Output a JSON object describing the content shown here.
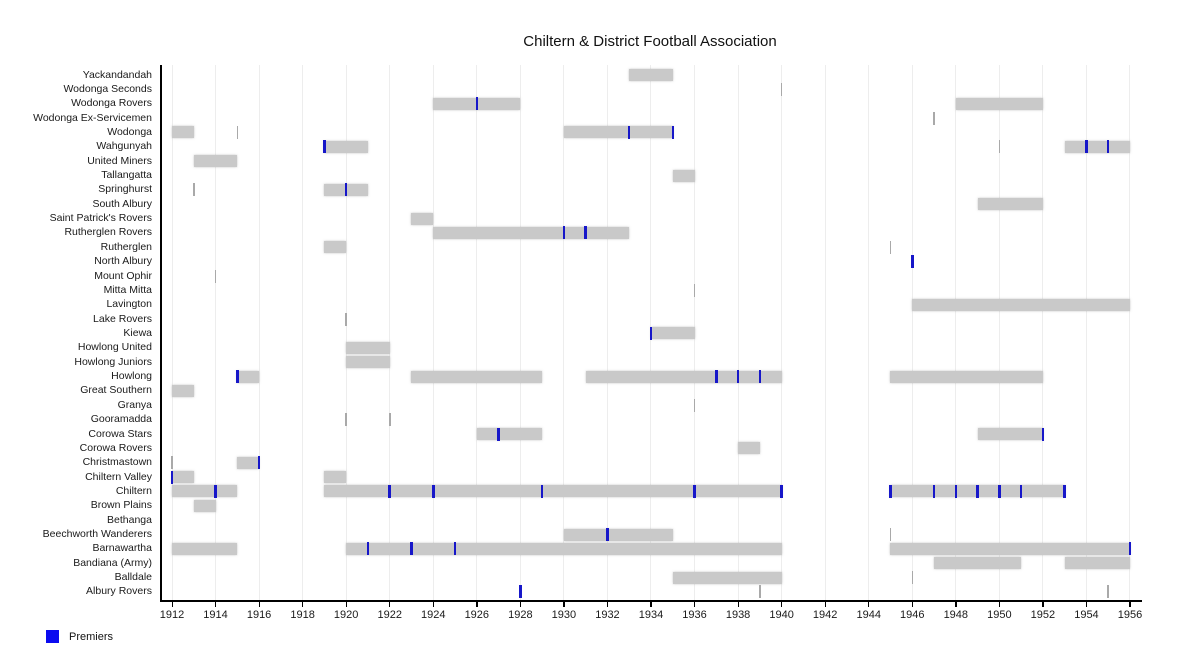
{
  "title": "Chiltern & District Football Association",
  "legend": {
    "label": "Premiers"
  },
  "colors": {
    "bar": "#c9c9c9",
    "premier": "#1717c9",
    "legend_swatch": "#0b0bf0",
    "single_year_mark": "#a9a9a9",
    "grid": "#ededed",
    "axis": "#000000"
  },
  "x_axis": {
    "tick_labels": [
      "1912",
      "1914",
      "1916",
      "1918",
      "1920",
      "1922",
      "1924",
      "1926",
      "1928",
      "1930",
      "1932",
      "1934",
      "1936",
      "1938",
      "1940",
      "1942",
      "1944",
      "1946",
      "1948",
      "1950",
      "1952",
      "1954",
      "1956"
    ]
  },
  "chart_data": {
    "type": "gantt-timeline",
    "title": "Chiltern & District Football Association",
    "xlabel": "",
    "ylabel": "",
    "x_range": [
      1912,
      1956
    ],
    "grid": true,
    "legend_position": "bottom-left",
    "legend_entries": [
      "Premiers"
    ],
    "bar_meaning": "years of membership",
    "premier_meaning": "blue tick = premiership year",
    "mark_meaning": "thin grey tick = single-year entry",
    "teams": [
      {
        "name": "Yackandandah",
        "bars": [
          [
            1933,
            1935
          ]
        ],
        "premiers": [],
        "marks": []
      },
      {
        "name": "Wodonga Seconds",
        "bars": [],
        "premiers": [],
        "marks": [
          1940
        ]
      },
      {
        "name": "Wodonga Rovers",
        "bars": [
          [
            1924,
            1928
          ],
          [
            1948,
            1952
          ]
        ],
        "premiers": [
          1926
        ],
        "marks": []
      },
      {
        "name": "Wodonga Ex-Servicemen",
        "bars": [],
        "premiers": [],
        "marks": [
          1947
        ]
      },
      {
        "name": "Wodonga",
        "bars": [
          [
            1912,
            1913
          ],
          [
            1930,
            1935
          ]
        ],
        "premiers": [
          1933,
          1935
        ],
        "marks": [
          1915
        ]
      },
      {
        "name": "Wahgunyah",
        "bars": [
          [
            1919,
            1921
          ],
          [
            1953,
            1956
          ]
        ],
        "premiers": [
          1919,
          1954,
          1955
        ],
        "marks": [
          1950
        ]
      },
      {
        "name": "United Miners",
        "bars": [
          [
            1913,
            1915
          ]
        ],
        "premiers": [],
        "marks": []
      },
      {
        "name": "Tallangatta",
        "bars": [
          [
            1935,
            1936
          ]
        ],
        "premiers": [],
        "marks": []
      },
      {
        "name": "Springhurst",
        "bars": [
          [
            1919,
            1921
          ]
        ],
        "premiers": [
          1920
        ],
        "marks": [
          1913
        ]
      },
      {
        "name": "South Albury",
        "bars": [
          [
            1949,
            1952
          ]
        ],
        "premiers": [],
        "marks": []
      },
      {
        "name": "Saint Patrick's Rovers",
        "bars": [
          [
            1923,
            1924
          ]
        ],
        "premiers": [],
        "marks": []
      },
      {
        "name": "Rutherglen Rovers",
        "bars": [
          [
            1924,
            1933
          ]
        ],
        "premiers": [
          1930,
          1931
        ],
        "marks": []
      },
      {
        "name": "Rutherglen",
        "bars": [
          [
            1919,
            1920
          ]
        ],
        "premiers": [],
        "marks": [
          1945
        ]
      },
      {
        "name": "North Albury",
        "bars": [],
        "premiers": [
          1946
        ],
        "marks": []
      },
      {
        "name": "Mount Ophir",
        "bars": [],
        "premiers": [],
        "marks": [
          1914
        ]
      },
      {
        "name": "Mitta Mitta",
        "bars": [],
        "premiers": [],
        "marks": [
          1936
        ]
      },
      {
        "name": "Lavington",
        "bars": [
          [
            1946,
            1956
          ]
        ],
        "premiers": [],
        "marks": []
      },
      {
        "name": "Lake Rovers",
        "bars": [],
        "premiers": [],
        "marks": [
          1920
        ]
      },
      {
        "name": "Kiewa",
        "bars": [
          [
            1934,
            1936
          ]
        ],
        "premiers": [
          1934
        ],
        "marks": []
      },
      {
        "name": "Howlong United",
        "bars": [
          [
            1920,
            1922
          ]
        ],
        "premiers": [],
        "marks": []
      },
      {
        "name": "Howlong Juniors",
        "bars": [
          [
            1920,
            1922
          ]
        ],
        "premiers": [],
        "marks": []
      },
      {
        "name": "Howlong",
        "bars": [
          [
            1915,
            1916
          ],
          [
            1923,
            1929
          ],
          [
            1931,
            1940
          ],
          [
            1945,
            1952
          ]
        ],
        "premiers": [
          1915,
          1937,
          1938,
          1939
        ],
        "marks": []
      },
      {
        "name": "Great Southern",
        "bars": [
          [
            1912,
            1913
          ]
        ],
        "premiers": [],
        "marks": []
      },
      {
        "name": "Granya",
        "bars": [],
        "premiers": [],
        "marks": [
          1936
        ]
      },
      {
        "name": "Gooramadda",
        "bars": [],
        "premiers": [],
        "marks": [
          1920,
          1922
        ]
      },
      {
        "name": "Corowa Stars",
        "bars": [
          [
            1926,
            1929
          ],
          [
            1949,
            1952
          ]
        ],
        "premiers": [
          1927,
          1952
        ],
        "marks": []
      },
      {
        "name": "Corowa Rovers",
        "bars": [
          [
            1938,
            1939
          ]
        ],
        "premiers": [],
        "marks": []
      },
      {
        "name": "Christmastown",
        "bars": [
          [
            1915,
            1916
          ]
        ],
        "premiers": [
          1916
        ],
        "marks": [
          1912
        ]
      },
      {
        "name": "Chiltern Valley",
        "bars": [
          [
            1912,
            1913
          ],
          [
            1919,
            1920
          ]
        ],
        "premiers": [
          1912
        ],
        "marks": []
      },
      {
        "name": "Chiltern",
        "bars": [
          [
            1912,
            1915
          ],
          [
            1919,
            1940
          ],
          [
            1945,
            1953
          ]
        ],
        "premiers": [
          1914,
          1922,
          1924,
          1929,
          1936,
          1940,
          1945,
          1947,
          1948,
          1949,
          1950,
          1951,
          1953
        ],
        "marks": []
      },
      {
        "name": "Brown Plains",
        "bars": [
          [
            1913,
            1914
          ]
        ],
        "premiers": [],
        "marks": []
      },
      {
        "name": "Bethanga",
        "bars": [],
        "premiers": [],
        "marks": []
      },
      {
        "name": "Beechworth Wanderers",
        "bars": [
          [
            1930,
            1935
          ]
        ],
        "premiers": [
          1932
        ],
        "marks": [
          1945
        ]
      },
      {
        "name": "Barnawartha",
        "bars": [
          [
            1912,
            1915
          ],
          [
            1920,
            1940
          ],
          [
            1945,
            1956
          ]
        ],
        "premiers": [
          1921,
          1923,
          1925,
          1956
        ],
        "marks": []
      },
      {
        "name": "Bandiana (Army)",
        "bars": [
          [
            1947,
            1951
          ],
          [
            1953,
            1956
          ]
        ],
        "premiers": [],
        "marks": []
      },
      {
        "name": "Balldale",
        "bars": [
          [
            1935,
            1940
          ]
        ],
        "premiers": [],
        "marks": [
          1946
        ]
      },
      {
        "name": "Albury Rovers",
        "bars": [],
        "premiers": [
          1928
        ],
        "marks": [
          1939,
          1955
        ]
      }
    ]
  }
}
